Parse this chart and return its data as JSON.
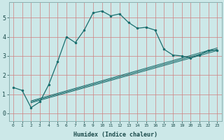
{
  "xlabel": "Humidex (Indice chaleur)",
  "ylabel": "",
  "bg_color": "#cce8e8",
  "grid_color": "#d08080",
  "line_color": "#1a6e6e",
  "xlim": [
    -0.5,
    23.5
  ],
  "ylim": [
    -0.4,
    5.8
  ],
  "xticks": [
    0,
    1,
    2,
    3,
    4,
    5,
    6,
    7,
    8,
    9,
    10,
    11,
    12,
    13,
    14,
    15,
    16,
    17,
    18,
    19,
    20,
    21,
    22,
    23
  ],
  "yticks": [
    0,
    1,
    2,
    3,
    4,
    5
  ],
  "curve_x": [
    0,
    1,
    2,
    3,
    4,
    5,
    6,
    7,
    8,
    9,
    10,
    11,
    12,
    13,
    14,
    15,
    16,
    17,
    18,
    19,
    20,
    21,
    22,
    23
  ],
  "curve_y": [
    1.35,
    1.2,
    0.3,
    0.6,
    1.5,
    2.7,
    4.0,
    3.7,
    4.35,
    5.25,
    5.35,
    5.1,
    5.2,
    4.75,
    4.45,
    4.5,
    4.35,
    3.35,
    3.05,
    3.0,
    2.9,
    3.05,
    3.3,
    3.3
  ],
  "line1_x": [
    2,
    23
  ],
  "line1_y": [
    0.55,
    3.28
  ],
  "line2_x": [
    2,
    23
  ],
  "line2_y": [
    0.6,
    3.35
  ],
  "line3_x": [
    2,
    23
  ],
  "line3_y": [
    0.65,
    3.42
  ]
}
